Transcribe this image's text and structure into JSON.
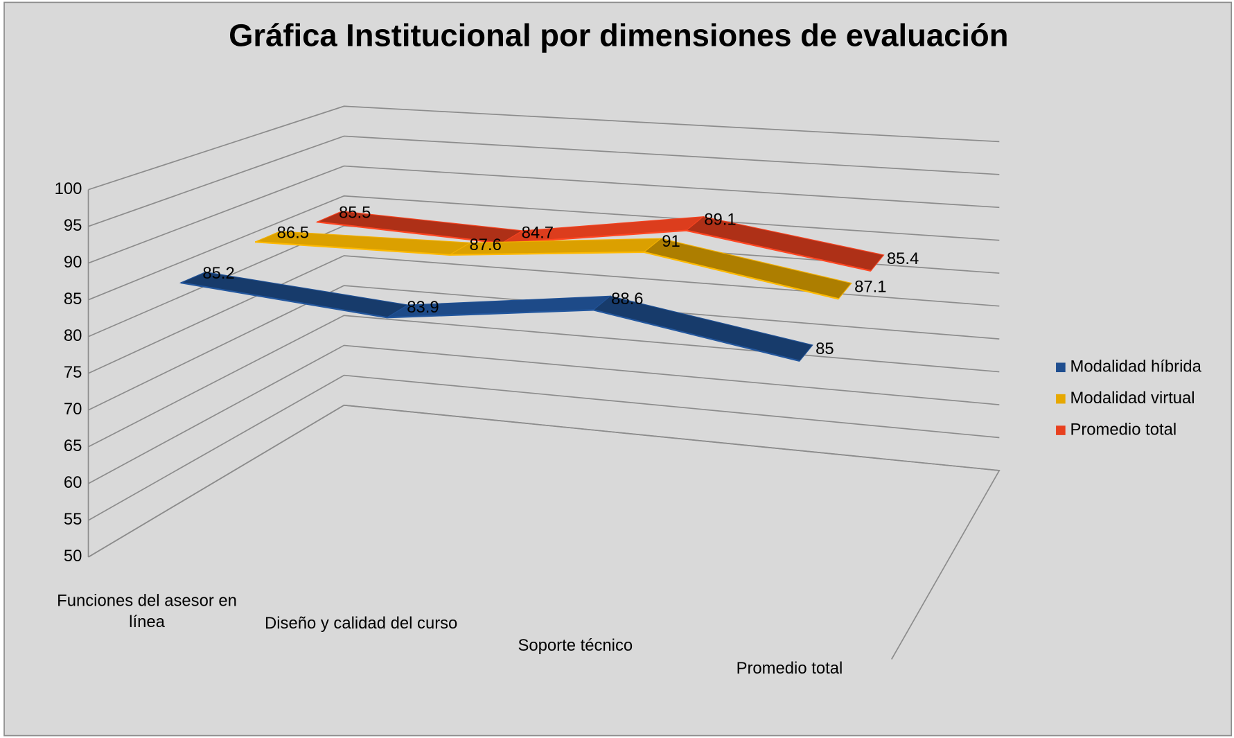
{
  "chart_data": {
    "type": "line3d",
    "title": "Gráfica Institucional por dimensiones de evaluación",
    "categories": [
      "Funciones del asesor en línea",
      "Diseño y calidad del curso",
      "Soporte técnico",
      "Promedio total"
    ],
    "series": [
      {
        "name": "Modalidad híbrida",
        "color": "#1f4e8f",
        "values": [
          85.2,
          83.9,
          88.6,
          85
        ]
      },
      {
        "name": "Modalidad virtual",
        "color": "#e6a800",
        "values": [
          86.5,
          87.6,
          91,
          87.1
        ]
      },
      {
        "name": "Promedio total",
        "color": "#e8401f",
        "values": [
          85.5,
          84.7,
          89.1,
          85.4
        ]
      }
    ],
    "ylim": [
      50,
      100
    ],
    "yticks": [
      50,
      55,
      60,
      65,
      70,
      75,
      80,
      85,
      90,
      95,
      100
    ],
    "grid": true,
    "legend": "right"
  }
}
